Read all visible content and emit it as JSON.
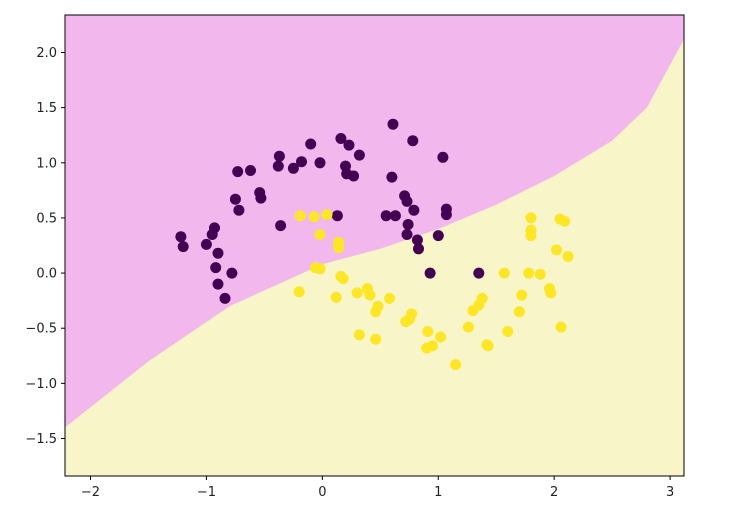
{
  "chart_data": {
    "type": "scatter",
    "title": "",
    "xlabel": "",
    "ylabel": "",
    "xlim": [
      -2.22,
      3.12
    ],
    "ylim": [
      -1.84,
      2.34
    ],
    "grid": false,
    "x_ticks": [
      -2,
      -1,
      0,
      1,
      2,
      3
    ],
    "x_tick_labels": [
      "−2",
      "−1",
      "0",
      "1",
      "2",
      "3"
    ],
    "y_ticks": [
      -1.5,
      -1.0,
      -0.5,
      0.0,
      0.5,
      1.0,
      1.5,
      2.0
    ],
    "y_tick_labels": [
      "−1.5",
      "−1.0",
      "−0.5",
      "0.0",
      "0.5",
      "1.0",
      "1.5",
      "2.0"
    ],
    "regions": {
      "upper_color": "#f2b8ee",
      "lower_color": "#f8f5c8",
      "boundary": [
        [
          -2.22,
          -1.4
        ],
        [
          -1.5,
          -0.8
        ],
        [
          -0.8,
          -0.3
        ],
        [
          0,
          0.08
        ],
        [
          0.5,
          0.22
        ],
        [
          1.0,
          0.4
        ],
        [
          1.5,
          0.62
        ],
        [
          2.0,
          0.88
        ],
        [
          2.5,
          1.2
        ],
        [
          2.8,
          1.5
        ],
        [
          3.12,
          2.12
        ]
      ]
    },
    "series": [
      {
        "color": "#440154",
        "points": [
          [
            -1.22,
            0.33
          ],
          [
            -1.2,
            0.24
          ],
          [
            -1.0,
            0.26
          ],
          [
            -0.95,
            0.35
          ],
          [
            -0.93,
            0.41
          ],
          [
            -0.9,
            0.18
          ],
          [
            -0.92,
            0.05
          ],
          [
            -0.9,
            -0.1
          ],
          [
            -0.84,
            -0.23
          ],
          [
            -0.78,
            0.0
          ],
          [
            -0.75,
            0.67
          ],
          [
            -0.72,
            0.57
          ],
          [
            -0.73,
            0.92
          ],
          [
            -0.62,
            0.93
          ],
          [
            -0.54,
            0.73
          ],
          [
            -0.53,
            0.68
          ],
          [
            -0.38,
            0.97
          ],
          [
            -0.37,
            1.06
          ],
          [
            -0.25,
            0.95
          ],
          [
            -0.18,
            1.01
          ],
          [
            -0.1,
            1.17
          ],
          [
            -0.02,
            1.0
          ],
          [
            0.16,
            1.22
          ],
          [
            0.2,
            0.97
          ],
          [
            0.23,
            1.16
          ],
          [
            0.21,
            0.9
          ],
          [
            0.27,
            0.88
          ],
          [
            0.32,
            1.07
          ],
          [
            0.13,
            0.52
          ],
          [
            -0.36,
            0.43
          ],
          [
            0.61,
            1.35
          ],
          [
            0.78,
            1.2
          ],
          [
            0.6,
            0.87
          ],
          [
            0.71,
            0.7
          ],
          [
            0.73,
            0.65
          ],
          [
            0.79,
            0.57
          ],
          [
            0.55,
            0.52
          ],
          [
            0.63,
            0.52
          ],
          [
            0.74,
            0.44
          ],
          [
            0.73,
            0.35
          ],
          [
            0.82,
            0.3
          ],
          [
            0.83,
            0.22
          ],
          [
            1.04,
            1.05
          ],
          [
            1.07,
            0.58
          ],
          [
            1.07,
            0.53
          ],
          [
            1.0,
            0.34
          ],
          [
            0.93,
            0.0
          ],
          [
            1.35,
            0.0
          ]
        ]
      },
      {
        "color": "#fde725",
        "points": [
          [
            -0.19,
            0.52
          ],
          [
            -0.07,
            0.51
          ],
          [
            0.04,
            0.53
          ],
          [
            -0.02,
            0.35
          ],
          [
            0.14,
            0.28
          ],
          [
            0.14,
            0.23
          ],
          [
            -0.06,
            0.05
          ],
          [
            -0.02,
            0.04
          ],
          [
            0.16,
            -0.03
          ],
          [
            0.18,
            -0.05
          ],
          [
            -0.2,
            -0.17
          ],
          [
            0.12,
            -0.22
          ],
          [
            0.3,
            -0.18
          ],
          [
            0.39,
            -0.14
          ],
          [
            0.41,
            -0.2
          ],
          [
            0.58,
            -0.23
          ],
          [
            0.48,
            -0.3
          ],
          [
            0.46,
            -0.35
          ],
          [
            0.72,
            -0.44
          ],
          [
            0.75,
            -0.42
          ],
          [
            0.77,
            -0.37
          ],
          [
            0.32,
            -0.56
          ],
          [
            0.46,
            -0.6
          ],
          [
            0.91,
            -0.53
          ],
          [
            0.9,
            -0.68
          ],
          [
            0.95,
            -0.66
          ],
          [
            1.02,
            -0.58
          ],
          [
            1.15,
            -0.83
          ],
          [
            1.26,
            -0.49
          ],
          [
            1.3,
            -0.34
          ],
          [
            1.35,
            -0.29
          ],
          [
            1.38,
            -0.23
          ],
          [
            1.42,
            -0.65
          ],
          [
            1.43,
            -0.66
          ],
          [
            1.57,
            0.0
          ],
          [
            1.6,
            -0.53
          ],
          [
            1.7,
            -0.35
          ],
          [
            1.72,
            -0.2
          ],
          [
            1.78,
            0.0
          ],
          [
            1.8,
            0.5
          ],
          [
            1.8,
            0.39
          ],
          [
            1.8,
            0.34
          ],
          [
            1.88,
            -0.01
          ],
          [
            1.96,
            -0.14
          ],
          [
            1.97,
            -0.18
          ],
          [
            2.02,
            0.21
          ],
          [
            2.05,
            0.49
          ],
          [
            2.09,
            0.47
          ],
          [
            2.12,
            0.15
          ],
          [
            2.06,
            -0.49
          ]
        ]
      }
    ]
  }
}
